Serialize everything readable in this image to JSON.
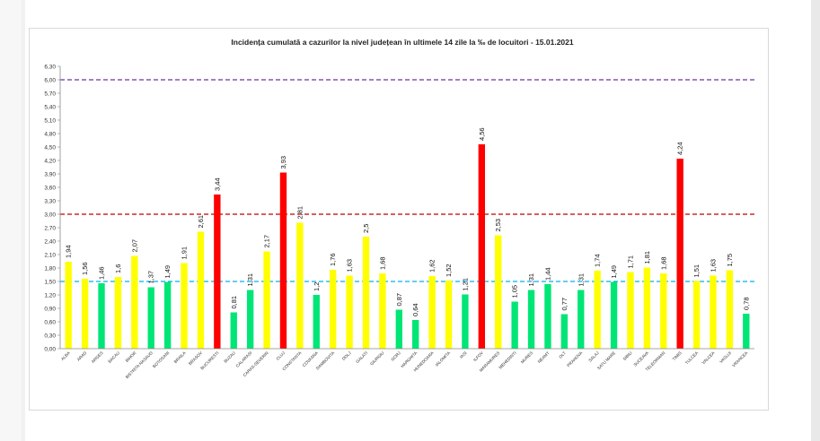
{
  "chart_data": {
    "type": "bar",
    "title": "Incidența cumulată a cazurilor la nivel județean în ultimele 14 zile   la ‰ de locuitori  - 15.01.2021",
    "xlabel": "",
    "ylabel": "",
    "ylim": [
      0,
      6.3
    ],
    "y_ticks": [
      "0,00",
      "0,30",
      "0,60",
      "0,90",
      "1,20",
      "1,50",
      "1,80",
      "2,10",
      "2,40",
      "2,70",
      "3,00",
      "3,30",
      "3,60",
      "3,90",
      "4,20",
      "4,50",
      "4,80",
      "5,10",
      "5,40",
      "5,70",
      "6,00",
      "6,30"
    ],
    "categories": [
      "ALBA",
      "ARAD",
      "ARGES",
      "BACAU",
      "BIHOR",
      "BISTRITA NASAUD",
      "BOTOSANI",
      "BRAILA",
      "BRASOV",
      "BUCURESTI",
      "BUZAU",
      "CALARASI",
      "CARAS-SEVERIN",
      "CLUJ",
      "CONSTANTA",
      "COVASNA",
      "DAMBOVITA",
      "DOLJ",
      "GALATI",
      "GIURGIU",
      "GORJ",
      "HARGHITA",
      "HUNEDOARA",
      "IALOMITA",
      "IASI",
      "ILFOV",
      "MARAMURES",
      "MEHEDINTI",
      "MURES",
      "NEAMT",
      "OLT",
      "PRAHOVA",
      "SALAJ",
      "SATU MARE",
      "SIBIU",
      "SUCEAVA",
      "TELEORMAN",
      "TIMIS",
      "TULCEA",
      "VALCEA",
      "VASLUI",
      "VRANCEA"
    ],
    "values": [
      1.94,
      1.56,
      1.46,
      1.6,
      2.07,
      1.37,
      1.49,
      1.91,
      2.61,
      3.44,
      0.81,
      1.31,
      2.17,
      3.93,
      2.81,
      1.2,
      1.76,
      1.63,
      2.5,
      1.68,
      0.87,
      0.64,
      1.62,
      1.52,
      1.21,
      4.56,
      2.53,
      1.05,
      1.31,
      1.44,
      0.77,
      1.31,
      1.74,
      1.49,
      1.71,
      1.81,
      1.68,
      4.24,
      1.51,
      1.63,
      1.75,
      0.78
    ],
    "data_labels": [
      "1,94",
      "1,56",
      "1,46",
      "1,6",
      "2,07",
      "1,37",
      "1,49",
      "1,91",
      "2,61",
      "3,44",
      "0,81",
      "1,31",
      "2,17",
      "3,93",
      "2,81",
      "1,2",
      "1,76",
      "1,63",
      "2,5",
      "1,68",
      "0,87",
      "0,64",
      "1,62",
      "1,52",
      "1,21",
      "4,56",
      "2,53",
      "1,05",
      "1,31",
      "1,44",
      "0,77",
      "1,31",
      "1,74",
      "1,49",
      "1,71",
      "1,81",
      "1,68",
      "4,24",
      "1,51",
      "1,63",
      "1,75",
      "0,78"
    ],
    "bar_colors": [
      "#ffff00",
      "#ffff00",
      "#00e676",
      "#ffff00",
      "#ffff00",
      "#00e676",
      "#00e676",
      "#ffff00",
      "#ffff00",
      "#ff0000",
      "#00e676",
      "#00e676",
      "#ffff00",
      "#ff0000",
      "#ffff00",
      "#00e676",
      "#ffff00",
      "#ffff00",
      "#ffff00",
      "#ffff00",
      "#00e676",
      "#00e676",
      "#ffff00",
      "#ffff00",
      "#00e676",
      "#ff0000",
      "#ffff00",
      "#00e676",
      "#00e676",
      "#00e676",
      "#00e676",
      "#00e676",
      "#ffff00",
      "#00e676",
      "#ffff00",
      "#ffff00",
      "#ffff00",
      "#ff0000",
      "#ffff00",
      "#ffff00",
      "#ffff00",
      "#00e676"
    ],
    "thresholds": [
      {
        "value": 6.0,
        "color": "#7030a0",
        "style": "dashed"
      },
      {
        "value": 3.0,
        "color": "#c00000",
        "style": "dashed"
      },
      {
        "value": 1.5,
        "color": "#00b0f0",
        "style": "dashed"
      }
    ],
    "grid": false,
    "legend": "none"
  }
}
